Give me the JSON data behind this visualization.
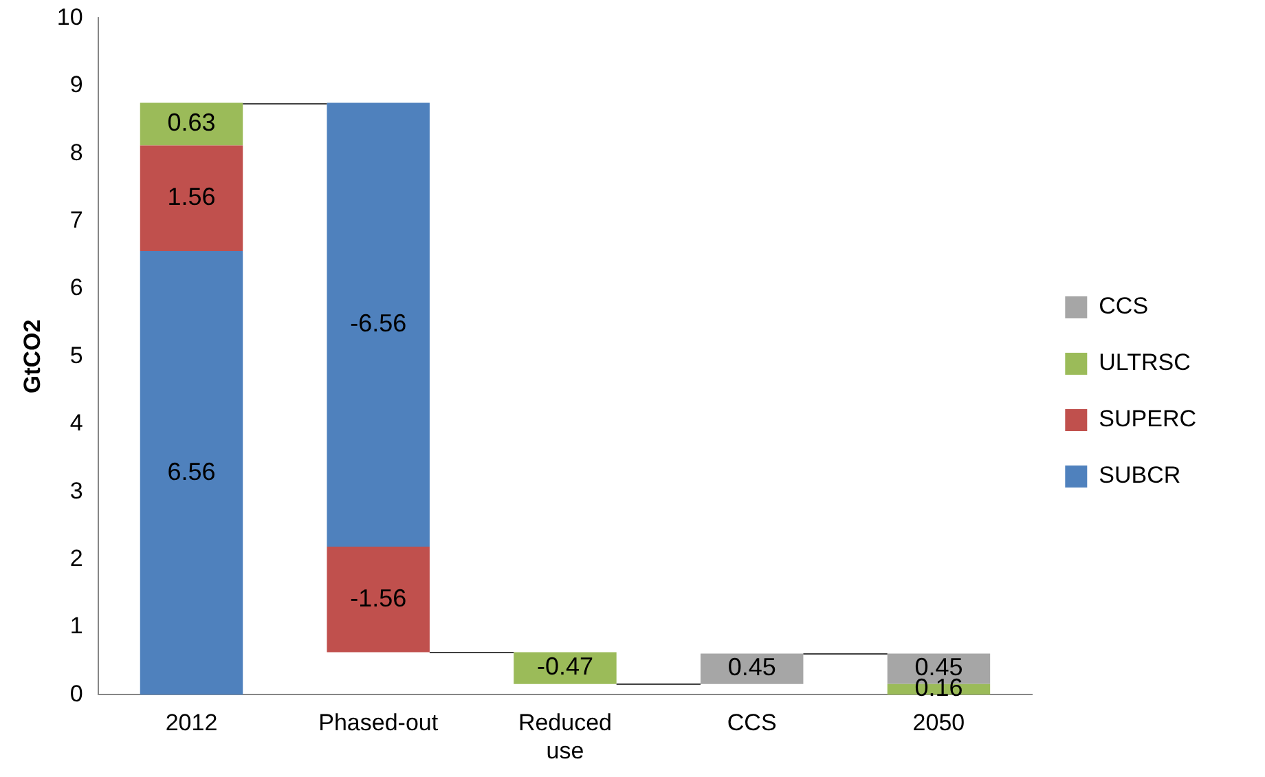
{
  "chart_data": {
    "type": "bar",
    "ylabel": "GtCO2",
    "categories": [
      "2012",
      "Phased-out",
      "Reduced use",
      "CCS",
      "2050"
    ],
    "series": [
      {
        "name": "SUBCR",
        "color": "#4f81bd",
        "values": [
          6.56,
          -6.56,
          null,
          null,
          null
        ],
        "base": [
          0,
          8.75,
          null,
          null,
          null
        ]
      },
      {
        "name": "SUPERC",
        "color": "#c0504d",
        "values": [
          1.56,
          -1.56,
          null,
          null,
          null
        ],
        "base": [
          6.56,
          2.19,
          null,
          null,
          null
        ]
      },
      {
        "name": "ULTRSC",
        "color": "#9bbb59",
        "values": [
          0.63,
          null,
          -0.47,
          null,
          0.16
        ],
        "base": [
          8.12,
          null,
          0.63,
          null,
          0
        ]
      },
      {
        "name": "CCS",
        "color": "#a6a6a6",
        "values": [
          null,
          null,
          null,
          0.45,
          0.45
        ],
        "base": [
          null,
          null,
          null,
          0.16,
          0.16
        ]
      }
    ],
    "ylim": [
      0,
      10
    ],
    "yticks": [
      0,
      1,
      2,
      3,
      4,
      5,
      6,
      7,
      8,
      9,
      10
    ],
    "grid": false,
    "legend": "right",
    "data_labels": true
  }
}
